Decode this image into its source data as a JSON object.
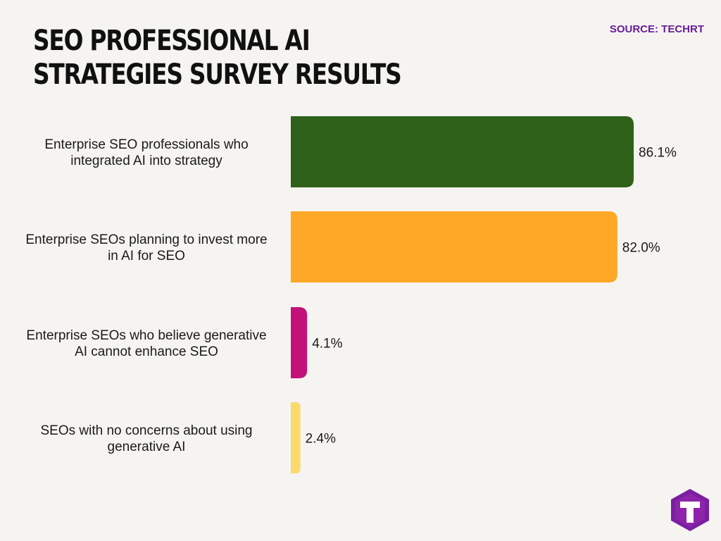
{
  "title": "SEO PROFESSIONAL AI STRATEGIES SURVEY RESULTS",
  "source": "SOURCE: TECHRT",
  "logo": {
    "icon": "techrt-t-logo-icon",
    "text": "T"
  },
  "chart_data": {
    "type": "bar",
    "orientation": "horizontal",
    "title": "SEO PROFESSIONAL AI STRATEGIES SURVEY RESULTS",
    "categories": [
      [
        "Enterprise SEO professionals who",
        "integrated AI into strategy"
      ],
      [
        "Enterprise SEOs planning to invest more",
        "in AI for SEO"
      ],
      [
        "Enterprise SEOs who believe generative",
        "AI cannot enhance SEO"
      ],
      [
        "SEOs with no concerns about using",
        "generative AI"
      ]
    ],
    "values": [
      86.1,
      82.0,
      4.1,
      2.4
    ],
    "value_labels": [
      "86.1%",
      "82.0%",
      "4.1%",
      "2.4%"
    ],
    "colors": [
      "#2f611b",
      "#ffa726",
      "#c2127a",
      "#fcd96b"
    ],
    "unit": "%",
    "grid": false,
    "legend": "none"
  }
}
